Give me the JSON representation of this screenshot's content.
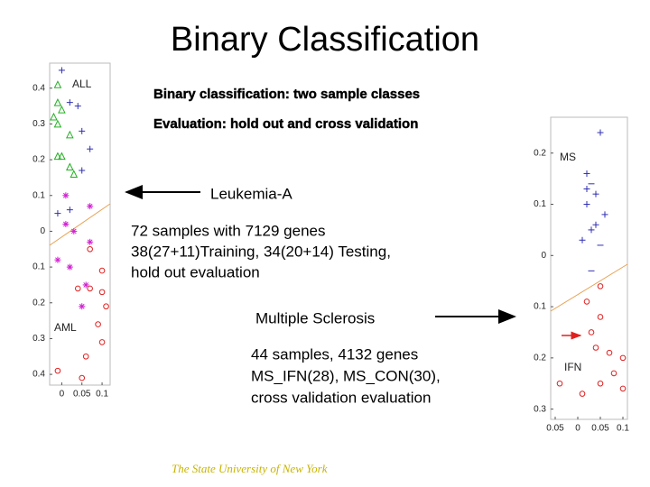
{
  "title": "Binary Classification",
  "subtitle_lines": [
    "Binary classification: two sample classes",
    "Evaluation: hold out and cross validation"
  ],
  "leukemia": {
    "heading": "Leukemia-A",
    "lines": [
      "72 samples with 7129 genes",
      "38(27+11)Training, 34(20+14) Testing,",
      "hold out evaluation"
    ]
  },
  "sclerosis": {
    "heading": "Multiple Sclerosis",
    "lines": [
      "44 samples, 4132 genes",
      "MS_IFN(28), MS_CON(30),",
      "cross validation evaluation"
    ]
  },
  "footer": "The State University of New York",
  "plots": [
    {
      "type": "scatter",
      "xlim": [
        -0.03,
        0.12
      ],
      "ylim": [
        -0.43,
        0.47
      ],
      "xticks": [
        0,
        0.05,
        0.1
      ],
      "yticks": [
        0.4,
        0.3,
        0.2,
        0.1,
        0,
        {
          "value": -0.1,
          "label": "0.1"
        },
        {
          "value": -0.2,
          "label": "0.2"
        },
        {
          "value": -0.3,
          "label": "0.3"
        },
        {
          "value": -0.4,
          "label": "0.4"
        }
      ],
      "series": [
        {
          "name": "ALL",
          "color": "#3030b0",
          "marker": "plus",
          "x": [
            0,
            0.02,
            0.05,
            0.07,
            0.05,
            -0.01,
            0.02,
            0.04
          ],
          "y": [
            0.45,
            0.36,
            0.28,
            0.23,
            0.17,
            0.05,
            0.06,
            0.35
          ]
        },
        {
          "color": "#22b022",
          "marker": "triangle",
          "x": [
            -0.01,
            -0.01,
            0,
            -0.02,
            -0.01,
            0.02,
            0,
            -0.01,
            0.02,
            0.03
          ],
          "y": [
            0.41,
            0.36,
            0.34,
            0.32,
            0.3,
            0.27,
            0.21,
            0.21,
            0.18,
            0.16
          ]
        },
        {
          "name": "AML",
          "color": "#e02020",
          "marker": "circle",
          "x": [
            0.07,
            0.1,
            0.07,
            0.1,
            0.04,
            0.11,
            0.09,
            0.1,
            0.06,
            -0.01,
            0.05
          ],
          "y": [
            -0.16,
            -0.17,
            -0.05,
            -0.11,
            -0.16,
            -0.21,
            -0.26,
            -0.31,
            -0.35,
            -0.39,
            -0.41
          ]
        },
        {
          "color": "#d020d0",
          "marker": "star",
          "x": [
            0.07,
            0.01,
            0.01,
            0.03,
            0.07,
            -0.01,
            0.02,
            0.06,
            0.05
          ],
          "y": [
            0.07,
            0.1,
            0.02,
            0,
            -0.03,
            -0.08,
            -0.1,
            -0.15,
            -0.21
          ]
        }
      ]
    },
    {
      "type": "scatter",
      "xlim": [
        -0.06,
        0.11
      ],
      "ylim": [
        -0.32,
        0.27
      ],
      "xticks": [
        {
          "value": -0.05,
          "label": "0.05"
        },
        0,
        0.05,
        0.1
      ],
      "yticks": [
        0.2,
        0.1,
        0,
        {
          "value": -0.1,
          "label": "0.1"
        },
        {
          "value": -0.2,
          "label": "0.2"
        },
        {
          "value": -0.3,
          "label": "0.3"
        }
      ],
      "series": [
        {
          "name": "MS",
          "color": "#3030b0",
          "marker": "plus",
          "x": [
            0.05,
            0.02,
            0.02,
            0.04,
            0.02,
            0.06,
            0.04,
            0.03,
            0.01
          ],
          "y": [
            0.24,
            0.16,
            0.13,
            0.12,
            0.1,
            0.08,
            0.06,
            0.05,
            0.03
          ]
        },
        {
          "color": "#3030b0",
          "marker": "dash",
          "x": [
            0.03,
            0.03,
            0.05
          ],
          "y": [
            0.14,
            -0.03,
            0.02
          ]
        },
        {
          "name": "IFN",
          "color": "#e02020",
          "marker": "circle",
          "x": [
            0.05,
            0.02,
            0.05,
            0.03,
            0.04,
            0.07,
            0.1,
            0.08,
            0.05,
            0.1,
            -0.04,
            0.01
          ],
          "y": [
            -0.06,
            -0.09,
            -0.12,
            -0.15,
            -0.18,
            -0.19,
            -0.2,
            -0.23,
            -0.25,
            -0.26,
            -0.25,
            -0.27
          ]
        }
      ]
    }
  ]
}
